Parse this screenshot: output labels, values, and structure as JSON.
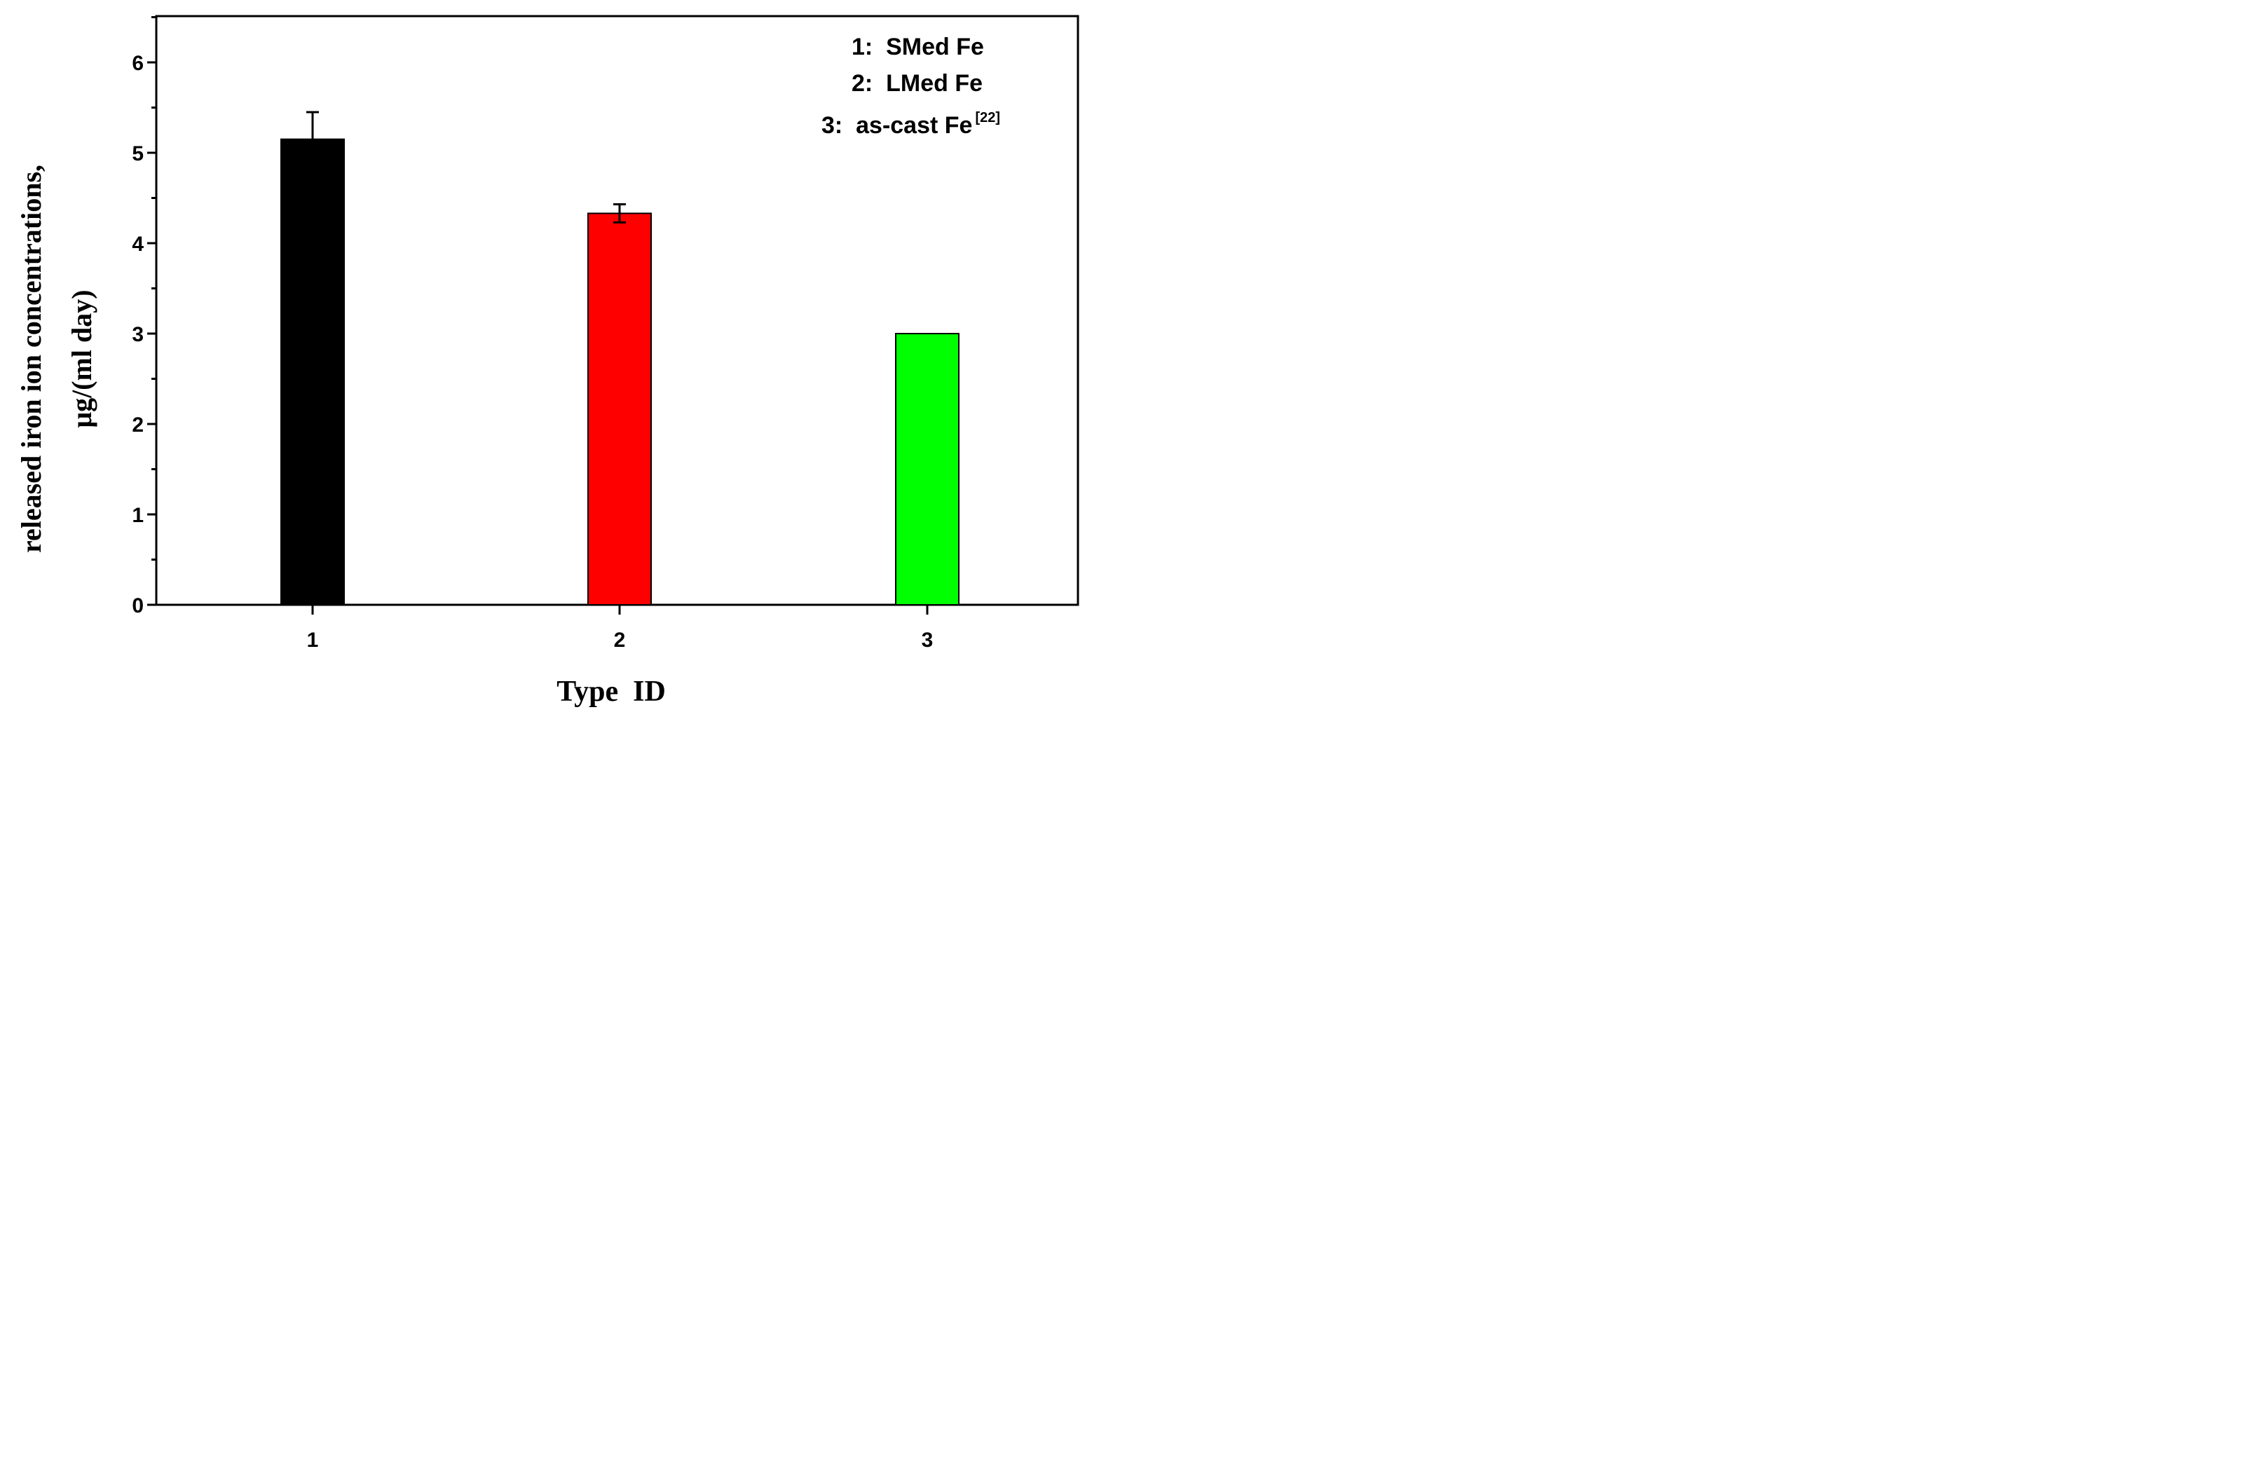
{
  "chart_data": {
    "type": "bar",
    "categories": [
      "1",
      "2",
      "3"
    ],
    "values": [
      5.15,
      4.33,
      3.0
    ],
    "errors": [
      0.3,
      0.1,
      0
    ],
    "colors": [
      "#000000",
      "#ff0000",
      "#00ff00"
    ],
    "xlabel": "Type  ID",
    "ylabel_line1": "released iron ion concentrations,",
    "ylabel_line2": "μg/(ml day)",
    "ylim": [
      0,
      6.5
    ],
    "yticks": [
      "0",
      "1",
      "2",
      "3",
      "4",
      "5",
      "6"
    ],
    "grid": false,
    "legend_position": "top-right",
    "legend": [
      {
        "text": "1:  SMed Fe",
        "sup": ""
      },
      {
        "text": "2:  LMed Fe",
        "sup": ""
      },
      {
        "text": "3:  as-cast Fe",
        "sup": "[22]"
      }
    ]
  }
}
